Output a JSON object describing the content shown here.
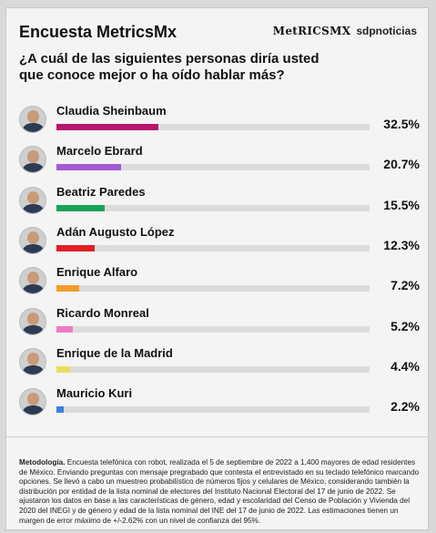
{
  "header": {
    "title": "Encuesta MetricsMx",
    "brand_logo": "MetRICSMX",
    "brand_source": "sdpnoticias"
  },
  "question": "¿A cuál de las siguientes personas diría usted que conoce mejor o ha oído hablar más?",
  "chart_data": {
    "type": "bar",
    "orientation": "horizontal",
    "title": "¿A cuál de las siguientes personas diría usted que conoce mejor o ha oído hablar más?",
    "categories": [
      "Claudia Sheinbaum",
      "Marcelo Ebrard",
      "Beatriz Paredes",
      "Adán Augusto López",
      "Enrique Alfaro",
      "Ricardo Monreal",
      "Enrique de la Madrid",
      "Mauricio Kuri"
    ],
    "values": [
      32.5,
      20.7,
      15.5,
      12.3,
      7.2,
      5.2,
      4.4,
      2.2
    ],
    "labels": [
      "32.5%",
      "20.7%",
      "15.5%",
      "12.3%",
      "7.2%",
      "5.2%",
      "4.4%",
      "2.2%"
    ],
    "colors": [
      "#b5176e",
      "#a35bd1",
      "#1aa356",
      "#e01f26",
      "#f29b2d",
      "#f07ac2",
      "#e8e05a",
      "#3e7fe0"
    ],
    "track_max": 100,
    "grid": false
  },
  "methodology": {
    "label": "Metodología.",
    "text": "Encuesta telefónica con robot, realizada el 5 de septiembre de 2022 a 1,400 mayores de edad residentes de México. Enviando preguntas con mensaje pregrabado que contesta el entrevistado en su teclado telefónico marcando opciones. Se llevó a cabo un muestreo probabilístico de números fijos y celulares de México, considerando también la distribución por entidad de la lista nominal de electores del Instituto Nacional Electoral del 17 de junio de 2022. Se ajustaron los datos en base a las características de género, edad y escolaridad del Censo de Población y Vivienda del 2020 del INEGI y de género y edad de la lista nominal del INE del 17 de junio de 2022. Las estimaciones tienen un margen de error máximo de +/-2.62% con un nivel de confianza del 95%."
  }
}
